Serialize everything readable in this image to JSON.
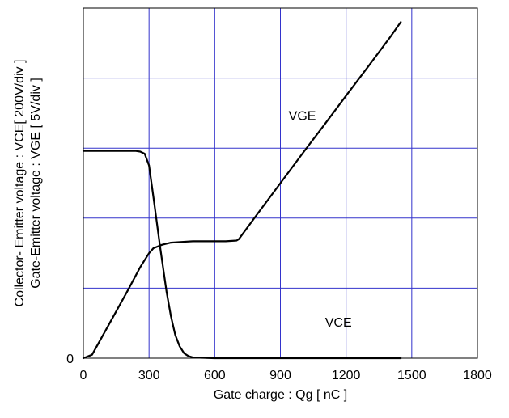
{
  "chart_data": {
    "type": "line",
    "title": "",
    "xlabel": "Gate charge : Qg [ nC ]",
    "ylabel_lines": [
      "Collector- Emitter voltage : VCE[ 200V/div ]",
      "Gate-Emitter voltage : VGE [ 5V/div ]"
    ],
    "xlim": [
      0,
      1800
    ],
    "ylim": [
      0,
      5
    ],
    "x_ticks": [
      0,
      300,
      600,
      900,
      1200,
      1500,
      1800
    ],
    "x_tick_labels": [
      "0",
      "300",
      "600",
      "900",
      "1200",
      "1500",
      "1800"
    ],
    "y_tick_labels": [
      {
        "value": 0,
        "label": "0"
      }
    ],
    "grid": true,
    "grid_color": "#3333cc",
    "line_color": "#000000",
    "series": [
      {
        "name": "VGE",
        "x": [
          0,
          40,
          120,
          200,
          260,
          300,
          320,
          360,
          400,
          450,
          500,
          550,
          600,
          650,
          700,
          710,
          800,
          900,
          1000,
          1100,
          1200,
          1300,
          1400,
          1450
        ],
        "y": [
          0.0,
          0.05,
          0.5,
          0.95,
          1.3,
          1.5,
          1.57,
          1.62,
          1.65,
          1.66,
          1.67,
          1.67,
          1.67,
          1.67,
          1.68,
          1.7,
          2.08,
          2.5,
          2.92,
          3.33,
          3.75,
          4.16,
          4.58,
          4.8
        ]
      },
      {
        "name": "VCE",
        "x": [
          0,
          100,
          200,
          240,
          260,
          280,
          300,
          320,
          350,
          380,
          400,
          420,
          440,
          460,
          480,
          500,
          600,
          900,
          1200,
          1450
        ],
        "y": [
          2.96,
          2.96,
          2.96,
          2.96,
          2.95,
          2.92,
          2.75,
          2.3,
          1.6,
          0.95,
          0.6,
          0.33,
          0.17,
          0.07,
          0.03,
          0.01,
          0.0,
          0.0,
          0.0,
          0.0
        ]
      }
    ],
    "annotations": [
      {
        "text": "VGE",
        "x": 1000,
        "y": 3.4
      },
      {
        "text": "VCE",
        "x": 1165,
        "y": 0.45
      }
    ]
  }
}
